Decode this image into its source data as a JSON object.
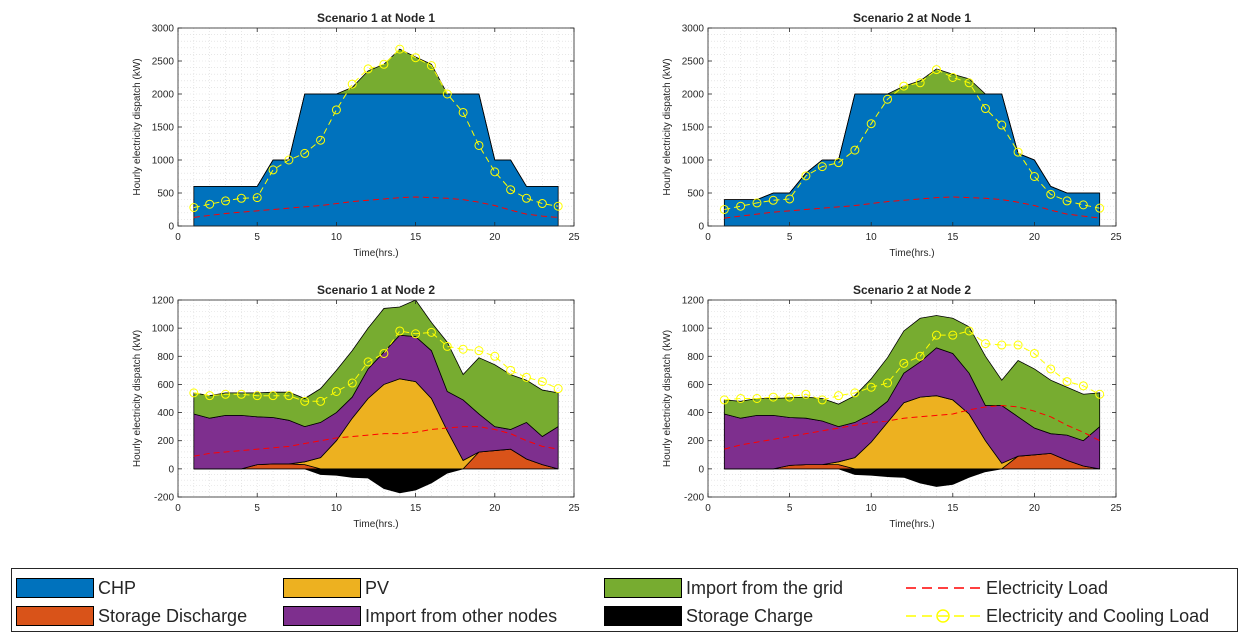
{
  "colors": {
    "chp": "#0072BD",
    "storage_discharge": "#D95319",
    "pv": "#EDB120",
    "import_other_nodes": "#7E2F8E",
    "import_grid": "#77AC30",
    "storage_charge": "#000000",
    "electricity_load": "#FF0000",
    "elec_cooling_load": "#FFFF00"
  },
  "legend": {
    "items": [
      {
        "key": "chp",
        "label": "CHP",
        "kind": "area"
      },
      {
        "key": "storage_discharge",
        "label": "Storage Discharge",
        "kind": "area"
      },
      {
        "key": "pv",
        "label": "PV",
        "kind": "area"
      },
      {
        "key": "import_other_nodes",
        "label": "Import from other nodes",
        "kind": "area"
      },
      {
        "key": "import_grid",
        "label": "Import from the grid",
        "kind": "area"
      },
      {
        "key": "storage_charge",
        "label": "Storage Charge",
        "kind": "area"
      },
      {
        "key": "electricity_load",
        "label": "Electricity Load",
        "kind": "dashed"
      },
      {
        "key": "elec_cooling_load",
        "label": "Electricity and Cooling Load",
        "kind": "dashed-marker"
      }
    ]
  },
  "chart_data": [
    {
      "type": "area",
      "title": "Scenario 1 at Node 1",
      "xlabel": "Time(hrs.)",
      "ylabel": "Hourly electricity dispatch (kW)",
      "xlim": [
        0,
        25
      ],
      "ylim": [
        0,
        3000
      ],
      "xticks": [
        0,
        5,
        10,
        15,
        20,
        25
      ],
      "yticks": [
        0,
        500,
        1000,
        1500,
        2000,
        2500,
        3000
      ],
      "grid": "minor dotted",
      "x": [
        1,
        2,
        3,
        4,
        5,
        6,
        7,
        8,
        9,
        10,
        11,
        12,
        13,
        14,
        15,
        16,
        17,
        18,
        19,
        20,
        21,
        22,
        23,
        24
      ],
      "stack_step": true,
      "series": [
        {
          "key": "chp",
          "values": [
            600,
            600,
            600,
            600,
            600,
            1000,
            1000,
            2000,
            2000,
            2000,
            2000,
            2000,
            2000,
            2000,
            2000,
            2000,
            2000,
            2000,
            2000,
            1000,
            1000,
            600,
            600,
            600
          ]
        },
        {
          "key": "import_grid",
          "values": [
            0,
            0,
            0,
            0,
            0,
            0,
            0,
            0,
            0,
            0,
            100,
            350,
            450,
            680,
            560,
            450,
            0,
            0,
            0,
            0,
            0,
            0,
            0,
            0
          ]
        }
      ],
      "negative_series": [],
      "electricity_load": [
        130,
        160,
        190,
        210,
        230,
        250,
        270,
        290,
        310,
        340,
        370,
        390,
        410,
        430,
        440,
        430,
        420,
        400,
        360,
        310,
        240,
        180,
        150,
        130
      ],
      "elec_cooling_load": [
        280,
        330,
        380,
        420,
        430,
        850,
        1000,
        1100,
        1300,
        1760,
        2150,
        2380,
        2450,
        2680,
        2550,
        2430,
        2000,
        1720,
        1220,
        820,
        550,
        420,
        340,
        300
      ]
    },
    {
      "type": "area",
      "title": "Scenario 2 at Node 1",
      "xlabel": "Time(hrs.)",
      "ylabel": "Hourly electricity dispatch (kW)",
      "xlim": [
        0,
        25
      ],
      "ylim": [
        0,
        3000
      ],
      "xticks": [
        0,
        5,
        10,
        15,
        20,
        25
      ],
      "yticks": [
        0,
        500,
        1000,
        1500,
        2000,
        2500,
        3000
      ],
      "grid": "minor dotted",
      "x": [
        1,
        2,
        3,
        4,
        5,
        6,
        7,
        8,
        9,
        10,
        11,
        12,
        13,
        14,
        15,
        16,
        17,
        18,
        19,
        20,
        21,
        22,
        23,
        24
      ],
      "stack_step": true,
      "series": [
        {
          "key": "chp",
          "values": [
            400,
            400,
            400,
            500,
            500,
            800,
            1000,
            1000,
            2000,
            2000,
            2000,
            2000,
            2000,
            2000,
            2000,
            2000,
            2000,
            2000,
            1100,
            1000,
            600,
            500,
            500,
            500
          ]
        },
        {
          "key": "import_grid",
          "values": [
            0,
            0,
            0,
            0,
            0,
            0,
            0,
            0,
            0,
            0,
            0,
            120,
            200,
            380,
            300,
            230,
            0,
            0,
            0,
            0,
            0,
            0,
            0,
            0
          ]
        }
      ],
      "negative_series": [],
      "electricity_load": [
        120,
        150,
        180,
        210,
        230,
        250,
        270,
        290,
        310,
        340,
        370,
        390,
        410,
        430,
        440,
        430,
        420,
        400,
        360,
        310,
        240,
        180,
        150,
        120
      ],
      "elec_cooling_load": [
        250,
        300,
        350,
        390,
        410,
        760,
        900,
        960,
        1150,
        1550,
        1920,
        2120,
        2170,
        2370,
        2250,
        2170,
        1780,
        1530,
        1120,
        750,
        480,
        380,
        320,
        270
      ]
    },
    {
      "type": "area",
      "title": "Scenario 1 at Node 2",
      "xlabel": "Time(hrs.)",
      "ylabel": "Hourly electricity dispatch (kW)",
      "xlim": [
        0,
        25
      ],
      "ylim": [
        -200,
        1200
      ],
      "xticks": [
        0,
        5,
        10,
        15,
        20,
        25
      ],
      "yticks": [
        -200,
        0,
        200,
        400,
        600,
        800,
        1000,
        1200
      ],
      "grid": "minor dotted",
      "x": [
        1,
        2,
        3,
        4,
        5,
        6,
        7,
        8,
        9,
        10,
        11,
        12,
        13,
        14,
        15,
        16,
        17,
        18,
        19,
        20,
        21,
        22,
        23,
        24
      ],
      "stack_step": false,
      "series": [
        {
          "key": "storage_discharge",
          "values": [
            0,
            0,
            0,
            0,
            30,
            35,
            35,
            30,
            0,
            0,
            0,
            0,
            0,
            0,
            0,
            0,
            0,
            0,
            120,
            130,
            140,
            70,
            30,
            0
          ]
        },
        {
          "key": "pv",
          "values": [
            0,
            0,
            0,
            0,
            0,
            0,
            0,
            20,
            80,
            200,
            360,
            500,
            600,
            640,
            620,
            500,
            270,
            60,
            0,
            0,
            0,
            0,
            0,
            0
          ]
        },
        {
          "key": "import_other_nodes",
          "values": [
            390,
            360,
            380,
            380,
            340,
            330,
            310,
            250,
            250,
            200,
            150,
            210,
            230,
            310,
            320,
            340,
            280,
            430,
            270,
            170,
            140,
            260,
            200,
            300
          ]
        },
        {
          "key": "import_grid",
          "values": [
            150,
            160,
            160,
            160,
            170,
            180,
            200,
            200,
            240,
            300,
            330,
            290,
            310,
            200,
            260,
            200,
            350,
            180,
            400,
            440,
            390,
            300,
            330,
            240
          ]
        }
      ],
      "negative_series": [
        {
          "key": "storage_charge",
          "values": [
            0,
            0,
            0,
            0,
            0,
            0,
            0,
            0,
            -40,
            -45,
            -60,
            -65,
            -140,
            -170,
            -150,
            -100,
            -30,
            0,
            0,
            0,
            0,
            0,
            0,
            0
          ]
        }
      ],
      "electricity_load": [
        90,
        110,
        120,
        130,
        140,
        150,
        160,
        180,
        200,
        220,
        230,
        240,
        250,
        250,
        260,
        280,
        290,
        300,
        300,
        280,
        250,
        200,
        160,
        140
      ],
      "elec_cooling_load": [
        540,
        520,
        530,
        530,
        520,
        520,
        520,
        480,
        480,
        550,
        610,
        760,
        820,
        980,
        960,
        970,
        870,
        850,
        840,
        800,
        700,
        650,
        620,
        570
      ]
    },
    {
      "type": "area",
      "title": "Scenario 2 at Node 2",
      "xlabel": "Time(hrs.)",
      "ylabel": "Hourly electricity dispatch (kW)",
      "xlim": [
        0,
        25
      ],
      "ylim": [
        -200,
        1200
      ],
      "xticks": [
        0,
        5,
        10,
        15,
        20,
        25
      ],
      "yticks": [
        -200,
        0,
        200,
        400,
        600,
        800,
        1000,
        1200
      ],
      "grid": "minor dotted",
      "x": [
        1,
        2,
        3,
        4,
        5,
        6,
        7,
        8,
        9,
        10,
        11,
        12,
        13,
        14,
        15,
        16,
        17,
        18,
        19,
        20,
        21,
        22,
        23,
        24
      ],
      "stack_step": false,
      "series": [
        {
          "key": "storage_discharge",
          "values": [
            0,
            0,
            0,
            0,
            25,
            30,
            30,
            30,
            0,
            0,
            0,
            0,
            0,
            0,
            0,
            0,
            0,
            0,
            90,
            100,
            110,
            60,
            20,
            0
          ]
        },
        {
          "key": "pv",
          "values": [
            0,
            0,
            0,
            0,
            0,
            0,
            0,
            20,
            80,
            190,
            330,
            470,
            510,
            520,
            490,
            390,
            200,
            40,
            0,
            0,
            0,
            0,
            0,
            0
          ]
        },
        {
          "key": "import_other_nodes",
          "values": [
            390,
            360,
            380,
            380,
            340,
            330,
            310,
            250,
            250,
            200,
            150,
            210,
            250,
            340,
            330,
            290,
            250,
            410,
            280,
            190,
            140,
            180,
            180,
            300
          ]
        },
        {
          "key": "import_grid",
          "values": [
            100,
            120,
            120,
            120,
            140,
            150,
            160,
            160,
            190,
            250,
            310,
            300,
            310,
            230,
            250,
            330,
            350,
            180,
            400,
            420,
            380,
            340,
            330,
            240
          ]
        }
      ],
      "negative_series": [
        {
          "key": "storage_charge",
          "values": [
            0,
            0,
            0,
            0,
            0,
            0,
            0,
            0,
            -40,
            -45,
            -55,
            -60,
            -100,
            -125,
            -110,
            -60,
            -20,
            0,
            0,
            0,
            0,
            0,
            0,
            0
          ]
        }
      ],
      "electricity_load": [
        140,
        170,
        190,
        210,
        230,
        250,
        270,
        290,
        310,
        330,
        340,
        360,
        370,
        380,
        390,
        420,
        440,
        450,
        440,
        410,
        370,
        310,
        260,
        200
      ],
      "elec_cooling_load": [
        490,
        500,
        500,
        510,
        510,
        530,
        490,
        520,
        540,
        580,
        610,
        750,
        800,
        950,
        950,
        980,
        890,
        880,
        880,
        820,
        710,
        620,
        590,
        530
      ]
    }
  ]
}
